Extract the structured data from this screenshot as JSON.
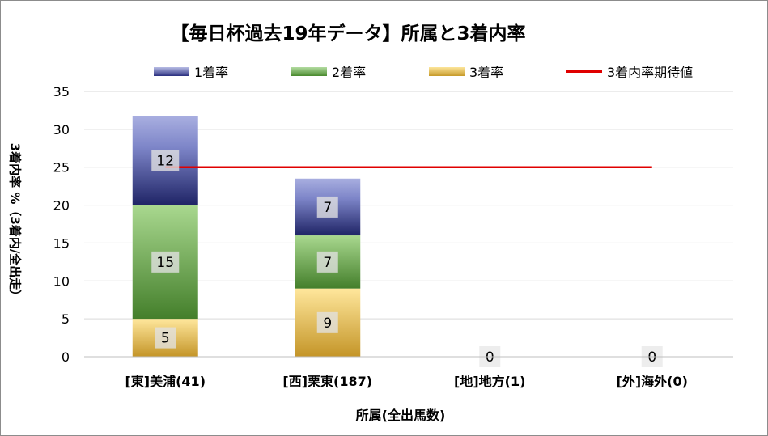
{
  "chart_data": {
    "type": "bar",
    "stacked": true,
    "title": "【毎日杯過去19年データ】所属と3着内率",
    "xlabel": "所属(全出馬数)",
    "ylabel": "3着内率 %（3着内/全出走）",
    "categories": [
      "[東]美浦(41)",
      "[西]栗東(187)",
      "[地]地方(1)",
      "[外]海外(0)"
    ],
    "series": [
      {
        "name": "3着率",
        "values": [
          5,
          9,
          0,
          0
        ],
        "color": "#d4a83a"
      },
      {
        "name": "2着率",
        "values": [
          15,
          7,
          0,
          0
        ],
        "color": "#6aa64a"
      },
      {
        "name": "1着率",
        "values": [
          12,
          7,
          0,
          0
        ],
        "color": "#3a4290"
      }
    ],
    "bar_totals": [
      31.7,
      23.5,
      0,
      0
    ],
    "reference_line": {
      "name": "3着内率期待値",
      "value": 25,
      "color": "#e00000"
    },
    "legend_order": [
      "1着率",
      "2着率",
      "3着率",
      "3着内率期待値"
    ],
    "legend_position": "top",
    "ylim": [
      0,
      35
    ],
    "yticks": [
      0,
      5,
      10,
      15,
      20,
      25,
      30,
      35
    ],
    "grid": true
  }
}
